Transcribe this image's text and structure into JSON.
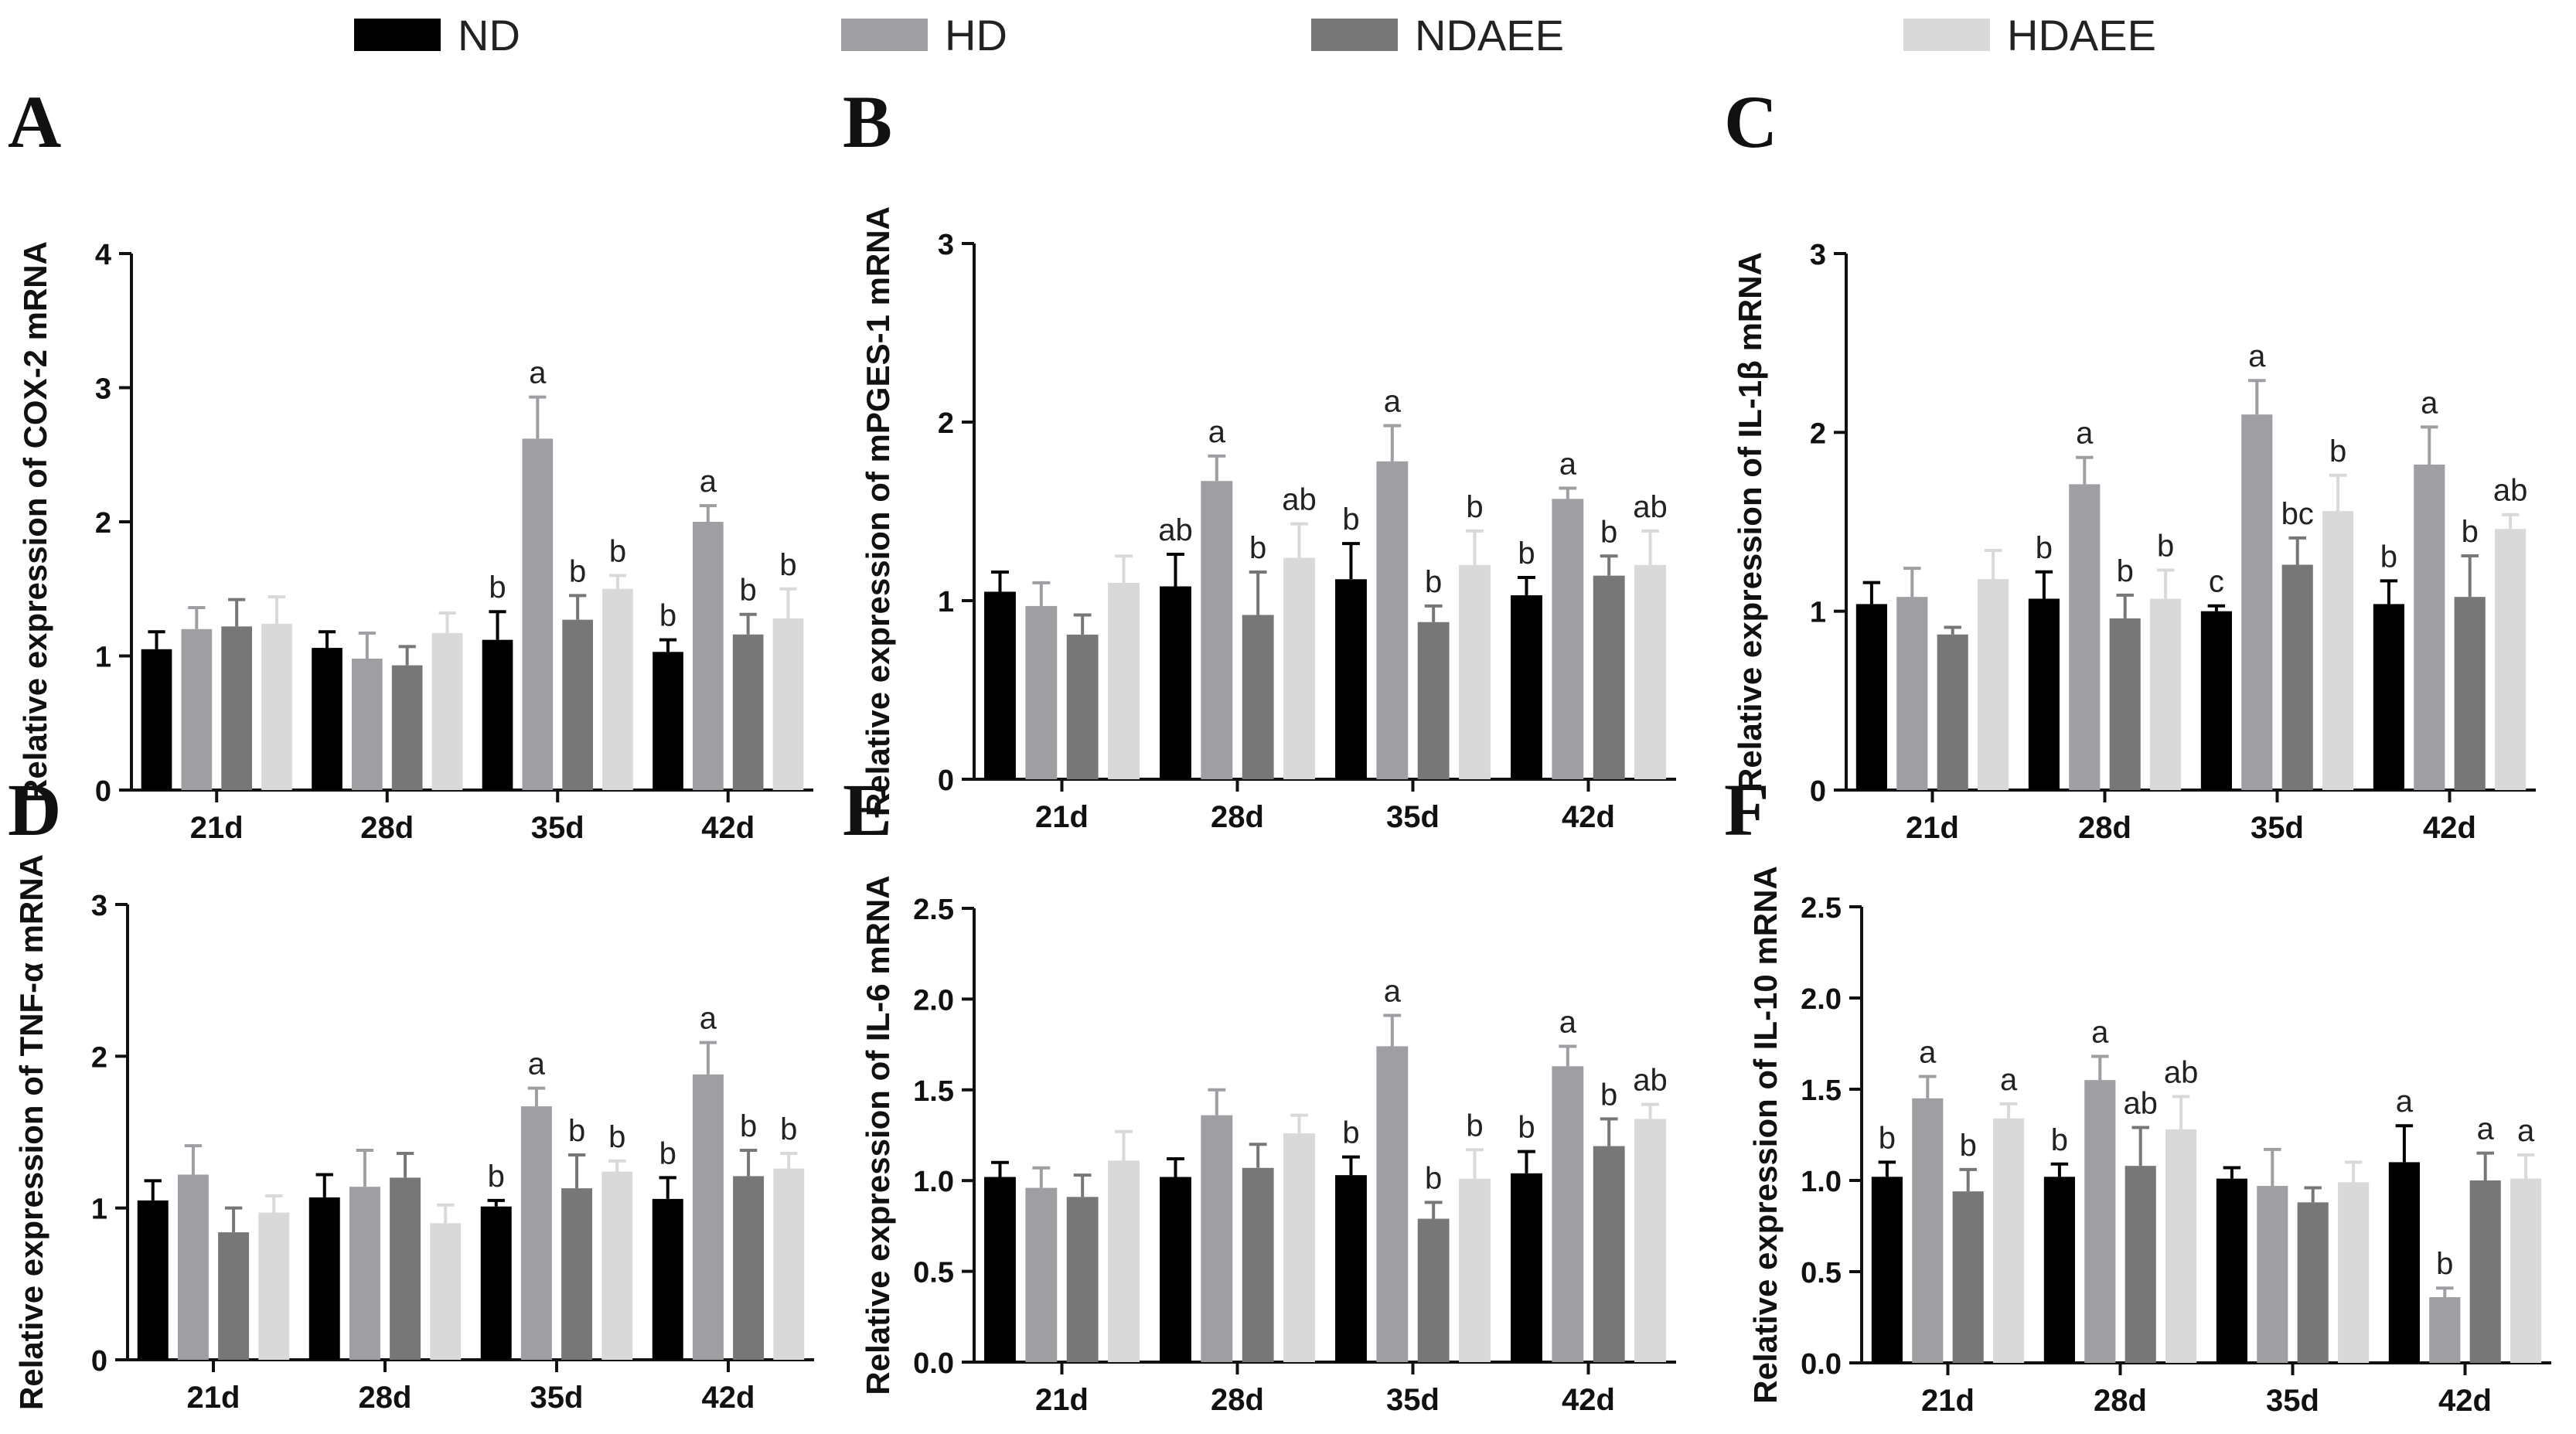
{
  "legend": [
    {
      "label": "ND",
      "color": "#000000"
    },
    {
      "label": "HD",
      "color": "#9e9ea3"
    },
    {
      "label": "NDAEE",
      "color": "#777777"
    },
    {
      "label": "HDAEE",
      "color": "#d9d9d9"
    }
  ],
  "chart_data": [
    {
      "type": "bar",
      "letter": "A",
      "ylabel": "Relative expression of COX-2 mRNA",
      "categories": [
        "21d",
        "28d",
        "35d",
        "42d"
      ],
      "ylim": [
        0,
        4
      ],
      "yticks": [
        "0",
        "1",
        "2",
        "3",
        "4"
      ],
      "series": [
        {
          "name": "ND",
          "values": [
            1.05,
            1.06,
            1.12,
            1.03
          ],
          "errors": [
            0.13,
            0.12,
            0.21,
            0.09
          ],
          "labels": [
            "",
            "",
            "b",
            "b"
          ]
        },
        {
          "name": "HD",
          "values": [
            1.2,
            0.98,
            2.62,
            2.0
          ],
          "errors": [
            0.16,
            0.19,
            0.31,
            0.12
          ],
          "labels": [
            "",
            "",
            "a",
            "a"
          ]
        },
        {
          "name": "NDAEE",
          "values": [
            1.22,
            0.93,
            1.27,
            1.16
          ],
          "errors": [
            0.2,
            0.14,
            0.18,
            0.15
          ],
          "labels": [
            "",
            "",
            "b",
            "b"
          ]
        },
        {
          "name": "HDAEE",
          "values": [
            1.24,
            1.17,
            1.5,
            1.28
          ],
          "errors": [
            0.2,
            0.15,
            0.1,
            0.22
          ],
          "labels": [
            "",
            "",
            "b",
            "b"
          ]
        }
      ]
    },
    {
      "type": "bar",
      "letter": "B",
      "ylabel": "Relative expression of mPGES-1 mRNA",
      "categories": [
        "21d",
        "28d",
        "35d",
        "42d"
      ],
      "ylim": [
        0,
        3
      ],
      "yticks": [
        "0",
        "1",
        "2",
        "3"
      ],
      "series": [
        {
          "name": "ND",
          "values": [
            1.05,
            1.08,
            1.12,
            1.03
          ],
          "errors": [
            0.11,
            0.18,
            0.2,
            0.1
          ],
          "labels": [
            "",
            "ab",
            "b",
            "b"
          ]
        },
        {
          "name": "HD",
          "values": [
            0.97,
            1.67,
            1.78,
            1.57
          ],
          "errors": [
            0.13,
            0.14,
            0.2,
            0.06
          ],
          "labels": [
            "",
            "a",
            "a",
            "a"
          ]
        },
        {
          "name": "NDAEE",
          "values": [
            0.81,
            0.92,
            0.88,
            1.14
          ],
          "errors": [
            0.11,
            0.24,
            0.09,
            0.11
          ],
          "labels": [
            "",
            "b",
            "b",
            "b"
          ]
        },
        {
          "name": "HDAEE",
          "values": [
            1.1,
            1.24,
            1.2,
            1.2
          ],
          "errors": [
            0.15,
            0.19,
            0.19,
            0.19
          ],
          "labels": [
            "",
            "ab",
            "b",
            "ab"
          ]
        }
      ]
    },
    {
      "type": "bar",
      "letter": "C",
      "ylabel": "Relative expression of IL-1β  mRNA",
      "categories": [
        "21d",
        "28d",
        "35d",
        "42d"
      ],
      "ylim": [
        0,
        3
      ],
      "yticks": [
        "0",
        "1",
        "2",
        "3"
      ],
      "series": [
        {
          "name": "ND",
          "values": [
            1.04,
            1.07,
            1.0,
            1.04
          ],
          "errors": [
            0.12,
            0.15,
            0.03,
            0.13
          ],
          "labels": [
            "",
            "b",
            "c",
            "b"
          ]
        },
        {
          "name": "HD",
          "values": [
            1.08,
            1.71,
            2.1,
            1.82
          ],
          "errors": [
            0.16,
            0.15,
            0.19,
            0.21
          ],
          "labels": [
            "",
            "a",
            "a",
            "a"
          ]
        },
        {
          "name": "NDAEE",
          "values": [
            0.87,
            0.96,
            1.26,
            1.08
          ],
          "errors": [
            0.04,
            0.13,
            0.15,
            0.23
          ],
          "labels": [
            "",
            "b",
            "bc",
            "b"
          ]
        },
        {
          "name": "HDAEE",
          "values": [
            1.18,
            1.07,
            1.56,
            1.46
          ],
          "errors": [
            0.16,
            0.16,
            0.2,
            0.08
          ],
          "labels": [
            "",
            "b",
            "b",
            "ab"
          ]
        }
      ]
    },
    {
      "type": "bar",
      "letter": "D",
      "ylabel": "Relative expression of TNF-α mRNA",
      "categories": [
        "21d",
        "28d",
        "35d",
        "42d"
      ],
      "ylim": [
        0,
        3
      ],
      "yticks": [
        "0",
        "1",
        "2",
        "3"
      ],
      "series": [
        {
          "name": "ND",
          "values": [
            1.05,
            1.07,
            1.01,
            1.06
          ],
          "errors": [
            0.13,
            0.15,
            0.04,
            0.14
          ],
          "labels": [
            "",
            "",
            "b",
            "b"
          ]
        },
        {
          "name": "HD",
          "values": [
            1.22,
            1.14,
            1.67,
            1.88
          ],
          "errors": [
            0.19,
            0.24,
            0.12,
            0.21
          ],
          "labels": [
            "",
            "",
            "a",
            "a"
          ]
        },
        {
          "name": "NDAEE",
          "values": [
            0.84,
            1.2,
            1.13,
            1.21
          ],
          "errors": [
            0.16,
            0.16,
            0.22,
            0.17
          ],
          "labels": [
            "",
            "",
            "b",
            "b"
          ]
        },
        {
          "name": "HDAEE",
          "values": [
            0.97,
            0.9,
            1.24,
            1.26
          ],
          "errors": [
            0.11,
            0.12,
            0.07,
            0.1
          ],
          "labels": [
            "",
            "",
            "b",
            "b"
          ]
        }
      ]
    },
    {
      "type": "bar",
      "letter": "E",
      "ylabel": "Relative expression of IL-6 mRNA",
      "categories": [
        "21d",
        "28d",
        "35d",
        "42d"
      ],
      "ylim": [
        0,
        2.5
      ],
      "yticks": [
        "0.0",
        "0.5",
        "1.0",
        "1.5",
        "2.0",
        "2.5"
      ],
      "series": [
        {
          "name": "ND",
          "values": [
            1.02,
            1.02,
            1.03,
            1.04
          ],
          "errors": [
            0.08,
            0.1,
            0.1,
            0.12
          ],
          "labels": [
            "",
            "",
            "b",
            "b"
          ]
        },
        {
          "name": "HD",
          "values": [
            0.96,
            1.36,
            1.74,
            1.63
          ],
          "errors": [
            0.11,
            0.14,
            0.17,
            0.11
          ],
          "labels": [
            "",
            "",
            "a",
            "a"
          ]
        },
        {
          "name": "NDAEE",
          "values": [
            0.91,
            1.07,
            0.79,
            1.19
          ],
          "errors": [
            0.12,
            0.13,
            0.09,
            0.15
          ],
          "labels": [
            "",
            "",
            "b",
            "b"
          ]
        },
        {
          "name": "HDAEE",
          "values": [
            1.11,
            1.26,
            1.01,
            1.34
          ],
          "errors": [
            0.16,
            0.1,
            0.16,
            0.08
          ],
          "labels": [
            "",
            "",
            "b",
            "ab"
          ]
        }
      ]
    },
    {
      "type": "bar",
      "letter": "F",
      "ylabel": "Relative expression of IL-10 mRNA",
      "categories": [
        "21d",
        "28d",
        "35d",
        "42d"
      ],
      "ylim": [
        0,
        2.5
      ],
      "yticks": [
        "0.0",
        "0.5",
        "1.0",
        "1.5",
        "2.0",
        "2.5"
      ],
      "series": [
        {
          "name": "ND",
          "values": [
            1.02,
            1.02,
            1.01,
            1.1
          ],
          "errors": [
            0.08,
            0.07,
            0.06,
            0.2
          ],
          "labels": [
            "b",
            "b",
            "",
            "a"
          ]
        },
        {
          "name": "HD",
          "values": [
            1.45,
            1.55,
            0.97,
            0.36
          ],
          "errors": [
            0.12,
            0.13,
            0.2,
            0.05
          ],
          "labels": [
            "a",
            "a",
            "",
            "b"
          ]
        },
        {
          "name": "NDAEE",
          "values": [
            0.94,
            1.08,
            0.88,
            1.0
          ],
          "errors": [
            0.12,
            0.21,
            0.08,
            0.15
          ],
          "labels": [
            "b",
            "ab",
            "",
            "a"
          ]
        },
        {
          "name": "HDAEE",
          "values": [
            1.34,
            1.28,
            0.99,
            1.01
          ],
          "errors": [
            0.08,
            0.18,
            0.11,
            0.13
          ],
          "labels": [
            "a",
            "ab",
            "",
            "a"
          ]
        }
      ]
    }
  ]
}
